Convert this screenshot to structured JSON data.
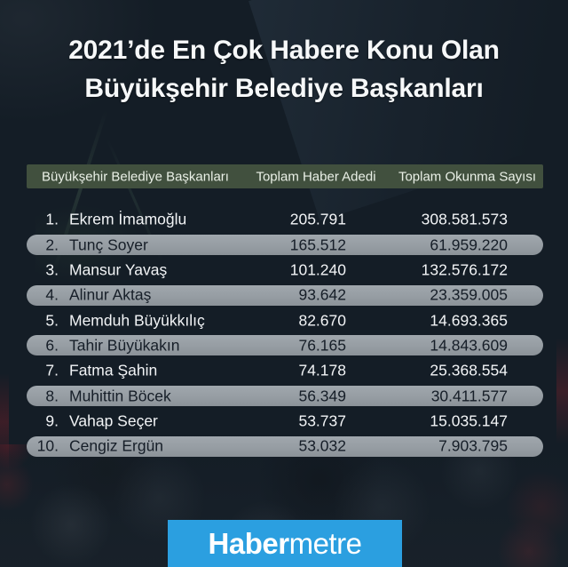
{
  "title": {
    "line1": "2021’de En Çok Habere Konu Olan",
    "line2": "Büyükşehir Belediye Başkanları"
  },
  "table": {
    "columns": [
      "Büyükşehir Belediye Başkanları",
      "Toplam Haber Adedi",
      "Toplam Okunma Sayısı"
    ],
    "rows": [
      {
        "rank": "1.",
        "name": "Ekrem İmamoğlu",
        "haber": "205.791",
        "okunma": "308.581.573"
      },
      {
        "rank": "2.",
        "name": "Tunç Soyer",
        "haber": "165.512",
        "okunma": "61.959.220"
      },
      {
        "rank": "3.",
        "name": "Mansur Yavaş",
        "haber": "101.240",
        "okunma": "132.576.172"
      },
      {
        "rank": "4.",
        "name": "Alinur Aktaş",
        "haber": "93.642",
        "okunma": "23.359.005"
      },
      {
        "rank": "5.",
        "name": "Memduh Büyükkılıç",
        "haber": "82.670",
        "okunma": "14.693.365"
      },
      {
        "rank": "6.",
        "name": "Tahir Büyükakın",
        "haber": "76.165",
        "okunma": "14.843.609"
      },
      {
        "rank": "7.",
        "name": "Fatma Şahin",
        "haber": "74.178",
        "okunma": "25.368.554"
      },
      {
        "rank": "8.",
        "name": "Muhittin Böcek",
        "haber": "56.349",
        "okunma": "30.411.577"
      },
      {
        "rank": "9.",
        "name": "Vahap Seçer",
        "haber": "53.737",
        "okunma": "15.035.147"
      },
      {
        "rank": "10.",
        "name": "Cengiz Ergün",
        "haber": "53.032",
        "okunma": "7.903.795"
      }
    ]
  },
  "logo": {
    "bold": "Haber",
    "light": "metre"
  },
  "colors": {
    "background": "#141d26",
    "header_bar_green": "#41503e",
    "stripe_gray": "#99a0a7",
    "text_light": "#f2f4f6",
    "text_dark": "#161e28",
    "logo_blue": "#2b9fe0"
  },
  "chart_data": {
    "type": "table",
    "title": "2021’de En Çok Habere Konu Olan Büyükşehir Belediye Başkanları",
    "columns": [
      "Büyükşehir Belediye Başkanları",
      "Toplam Haber Adedi",
      "Toplam Okunma Sayısı"
    ],
    "rows": [
      [
        "Ekrem İmamoğlu",
        205791,
        308581573
      ],
      [
        "Tunç Soyer",
        165512,
        61959220
      ],
      [
        "Mansur Yavaş",
        101240,
        132576172
      ],
      [
        "Alinur Aktaş",
        93642,
        23359005
      ],
      [
        "Memduh Büyükkılıç",
        82670,
        14693365
      ],
      [
        "Tahir Büyükakın",
        76165,
        14843609
      ],
      [
        "Fatma Şahin",
        74178,
        25368554
      ],
      [
        "Muhittin Böcek",
        56349,
        30411577
      ],
      [
        "Vahap Seçer",
        53737,
        15035147
      ],
      [
        "Cengiz Ergün",
        53032,
        7903795
      ]
    ]
  }
}
